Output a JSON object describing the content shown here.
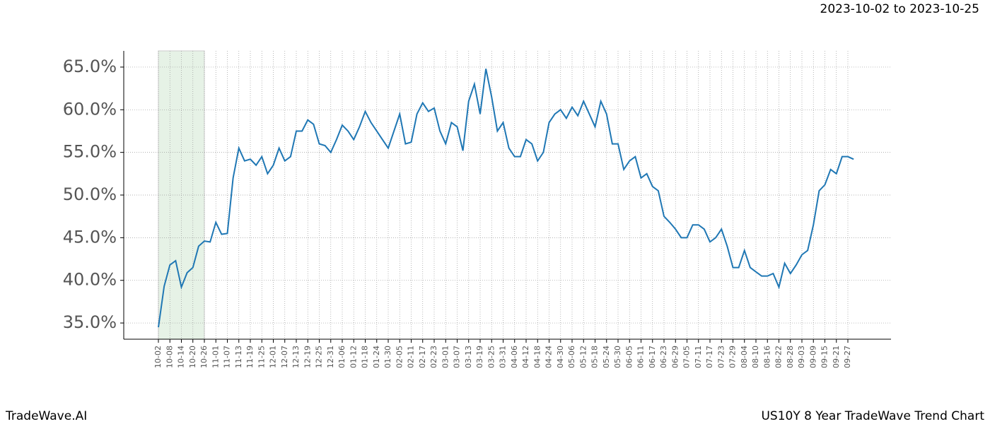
{
  "chart_data": {
    "type": "line",
    "subtitle": "2023-10-02 to 2023-10-25",
    "source": "TradeWave.AI",
    "title": "US10Y 8 Year TradeWave Trend Chart",
    "categories": [
      "10-02",
      null,
      "10-08",
      null,
      "10-14",
      null,
      "10-20",
      null,
      "10-26",
      null,
      "11-01",
      null,
      "11-07",
      null,
      "11-13",
      null,
      "11-19",
      null,
      "11-25",
      null,
      "12-01",
      null,
      "12-07",
      null,
      "12-13",
      null,
      "12-19",
      null,
      "12-25",
      null,
      "12-31",
      null,
      "01-06",
      null,
      "01-12",
      null,
      "01-18",
      null,
      "01-24",
      null,
      "01-30",
      null,
      "02-05",
      null,
      "02-11",
      null,
      "02-17",
      null,
      "02-23",
      null,
      "03-01",
      null,
      "03-07",
      null,
      "03-13",
      null,
      "03-19",
      null,
      "03-25",
      null,
      "03-31",
      null,
      "04-06",
      null,
      "04-12",
      null,
      "04-18",
      null,
      "04-24",
      null,
      "04-30",
      null,
      "05-06",
      null,
      "05-12",
      null,
      "05-18",
      null,
      "05-24",
      null,
      "05-30",
      null,
      "06-05",
      null,
      "06-11",
      null,
      "06-17",
      null,
      "06-23",
      null,
      "06-29",
      null,
      "07-05",
      null,
      "07-11",
      null,
      "07-17",
      null,
      "07-23",
      null,
      "07-29",
      null,
      "08-04",
      null,
      "08-10",
      null,
      "08-16",
      null,
      "08-22",
      null,
      "08-28",
      null,
      "09-03",
      null,
      "09-09",
      null,
      "09-15",
      null,
      "09-21",
      null,
      "09-27",
      null
    ],
    "values": [
      34.5,
      39.3,
      41.8,
      42.3,
      39.2,
      40.9,
      41.5,
      44.0,
      44.6,
      44.5,
      46.8,
      45.4,
      45.5,
      52,
      55.5,
      54,
      54.2,
      53.5,
      54.5,
      52.5,
      53.5,
      55.5,
      54,
      54.5,
      57.5,
      57.5,
      58.8,
      58.3,
      56,
      55.8,
      55,
      56.5,
      58.2,
      57.5,
      56.5,
      58,
      59.8,
      58.5,
      57.5,
      56.5,
      55.5,
      57.5,
      59.5,
      56,
      56.2,
      59.5,
      60.8,
      59.8,
      60.2,
      57.5,
      56,
      58.5,
      58,
      55.2,
      61,
      63,
      59.5,
      64.8,
      61.5,
      57.5,
      58.5,
      55.5,
      54.5,
      54.5,
      56.5,
      56,
      54,
      55,
      58.5,
      59.5,
      60,
      59,
      60.3,
      59.3,
      61,
      59.5,
      58,
      61,
      59.5,
      56,
      56,
      53,
      54,
      54.5,
      52,
      52.5,
      51,
      50.5,
      47.5,
      46.8,
      46,
      45,
      45,
      46.5,
      46.5,
      46,
      44.5,
      45,
      46,
      44,
      41.5,
      41.5,
      43.5,
      41.5,
      41,
      40.5,
      40.5,
      40.8,
      39.2,
      42,
      40.8,
      41.8,
      43,
      43.5,
      46.5,
      50.5,
      51.2,
      53,
      52.5,
      54.5,
      54.5,
      54.2
    ],
    "color": "#1f77b4",
    "highlight": [
      "10-02",
      "10-26"
    ],
    "highlight_color": "#e6f2e6",
    "ylim": [
      33.1,
      66.9
    ],
    "yticks": [
      {
        "value": 35,
        "label": "35.0%"
      },
      {
        "value": 40,
        "label": "40.0%"
      },
      {
        "value": 45,
        "label": "45.0%"
      },
      {
        "value": 50,
        "label": "50.0%"
      },
      {
        "value": 55,
        "label": "55.0%"
      },
      {
        "value": 60,
        "label": "60.0%"
      },
      {
        "value": 65,
        "label": "65.0%"
      }
    ],
    "grid": true
  }
}
